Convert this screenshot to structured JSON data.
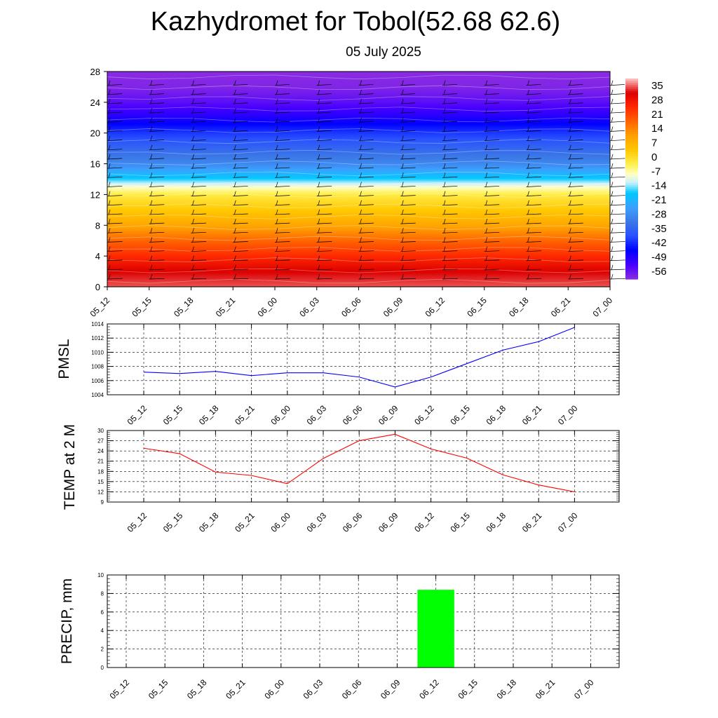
{
  "title": "Kazhydromet for Tobol(52.68 62.6)",
  "subtitle": "05 July 2025",
  "time_labels": [
    "05_12",
    "05_15",
    "05_18",
    "05_21",
    "06_00",
    "06_03",
    "06_06",
    "06_09",
    "06_12",
    "06_15",
    "06_18",
    "06_21",
    "07_00"
  ],
  "chart_data": [
    {
      "type": "heatmap",
      "title": "",
      "xlabel": "",
      "ylabel": "",
      "x": [
        "05_12",
        "05_15",
        "05_18",
        "05_21",
        "06_00",
        "06_03",
        "06_06",
        "06_09",
        "06_12",
        "06_15",
        "06_18",
        "06_21",
        "07_00"
      ],
      "ylim": [
        0,
        28
      ],
      "yticks": [
        0,
        4,
        8,
        12,
        16,
        20,
        24,
        28
      ],
      "colorbar": {
        "labels": [
          "35",
          "28",
          "21",
          "14",
          "7",
          "0",
          "-7",
          "-14",
          "-21",
          "-28",
          "-35",
          "-42",
          "-49",
          "-56"
        ],
        "range": [
          -63,
          35
        ]
      },
      "profile_height": [
        0,
        2,
        4,
        6,
        8,
        10,
        12,
        13,
        14,
        16,
        18,
        20,
        22,
        24,
        26,
        28
      ],
      "profile_temp": [
        31,
        28,
        21,
        14,
        6,
        0,
        -6,
        -12,
        -20,
        -32,
        -38,
        -44,
        -52,
        -58,
        -62,
        -63
      ],
      "overlay": "wind barbs"
    },
    {
      "type": "line",
      "ylabel": "PMSL",
      "x": [
        "05_12",
        "05_15",
        "05_18",
        "05_21",
        "06_00",
        "06_03",
        "06_06",
        "06_09",
        "06_12",
        "06_15",
        "06_18",
        "06_21",
        "07_00"
      ],
      "ylim": [
        1004,
        1014
      ],
      "yticks": [
        1004,
        1006,
        1008,
        1010,
        1012,
        1014
      ],
      "series": [
        {
          "values": [
            1007.2,
            1007.0,
            1007.3,
            1006.7,
            1007.1,
            1007.1,
            1006.5,
            1005.1,
            1006.5,
            1008.4,
            1010.3,
            1011.5,
            1013.5
          ],
          "color": "#0000ff"
        }
      ],
      "grid": true
    },
    {
      "type": "line",
      "ylabel": "TEMP at 2 M",
      "x": [
        "05_12",
        "05_15",
        "05_18",
        "05_21",
        "06_00",
        "06_03",
        "06_06",
        "06_09",
        "06_12",
        "06_15",
        "06_18",
        "06_21",
        "07_00"
      ],
      "ylim": [
        9,
        30
      ],
      "yticks": [
        9,
        12,
        15,
        18,
        21,
        24,
        27,
        30
      ],
      "series": [
        {
          "values": [
            24.8,
            23.2,
            17.8,
            16.8,
            14.4,
            21.8,
            27.0,
            28.9,
            24.6,
            21.9,
            17.0,
            14.0,
            12.0
          ],
          "color": "#ff0000"
        }
      ],
      "grid": true
    },
    {
      "type": "bar",
      "ylabel": "PRECIP, mm",
      "x": [
        "05_12",
        "05_15",
        "05_18",
        "05_21",
        "06_00",
        "06_03",
        "06_06",
        "06_09",
        "06_12",
        "06_15",
        "06_18",
        "06_21",
        "07_00"
      ],
      "ylim": [
        0,
        10
      ],
      "yticks": [
        0,
        2,
        4,
        6,
        8,
        10
      ],
      "values": [
        0,
        0,
        0,
        0,
        0,
        0,
        0,
        0,
        8.4,
        0,
        0,
        0,
        0
      ],
      "bar_color": "#00ff00",
      "grid": true
    }
  ]
}
